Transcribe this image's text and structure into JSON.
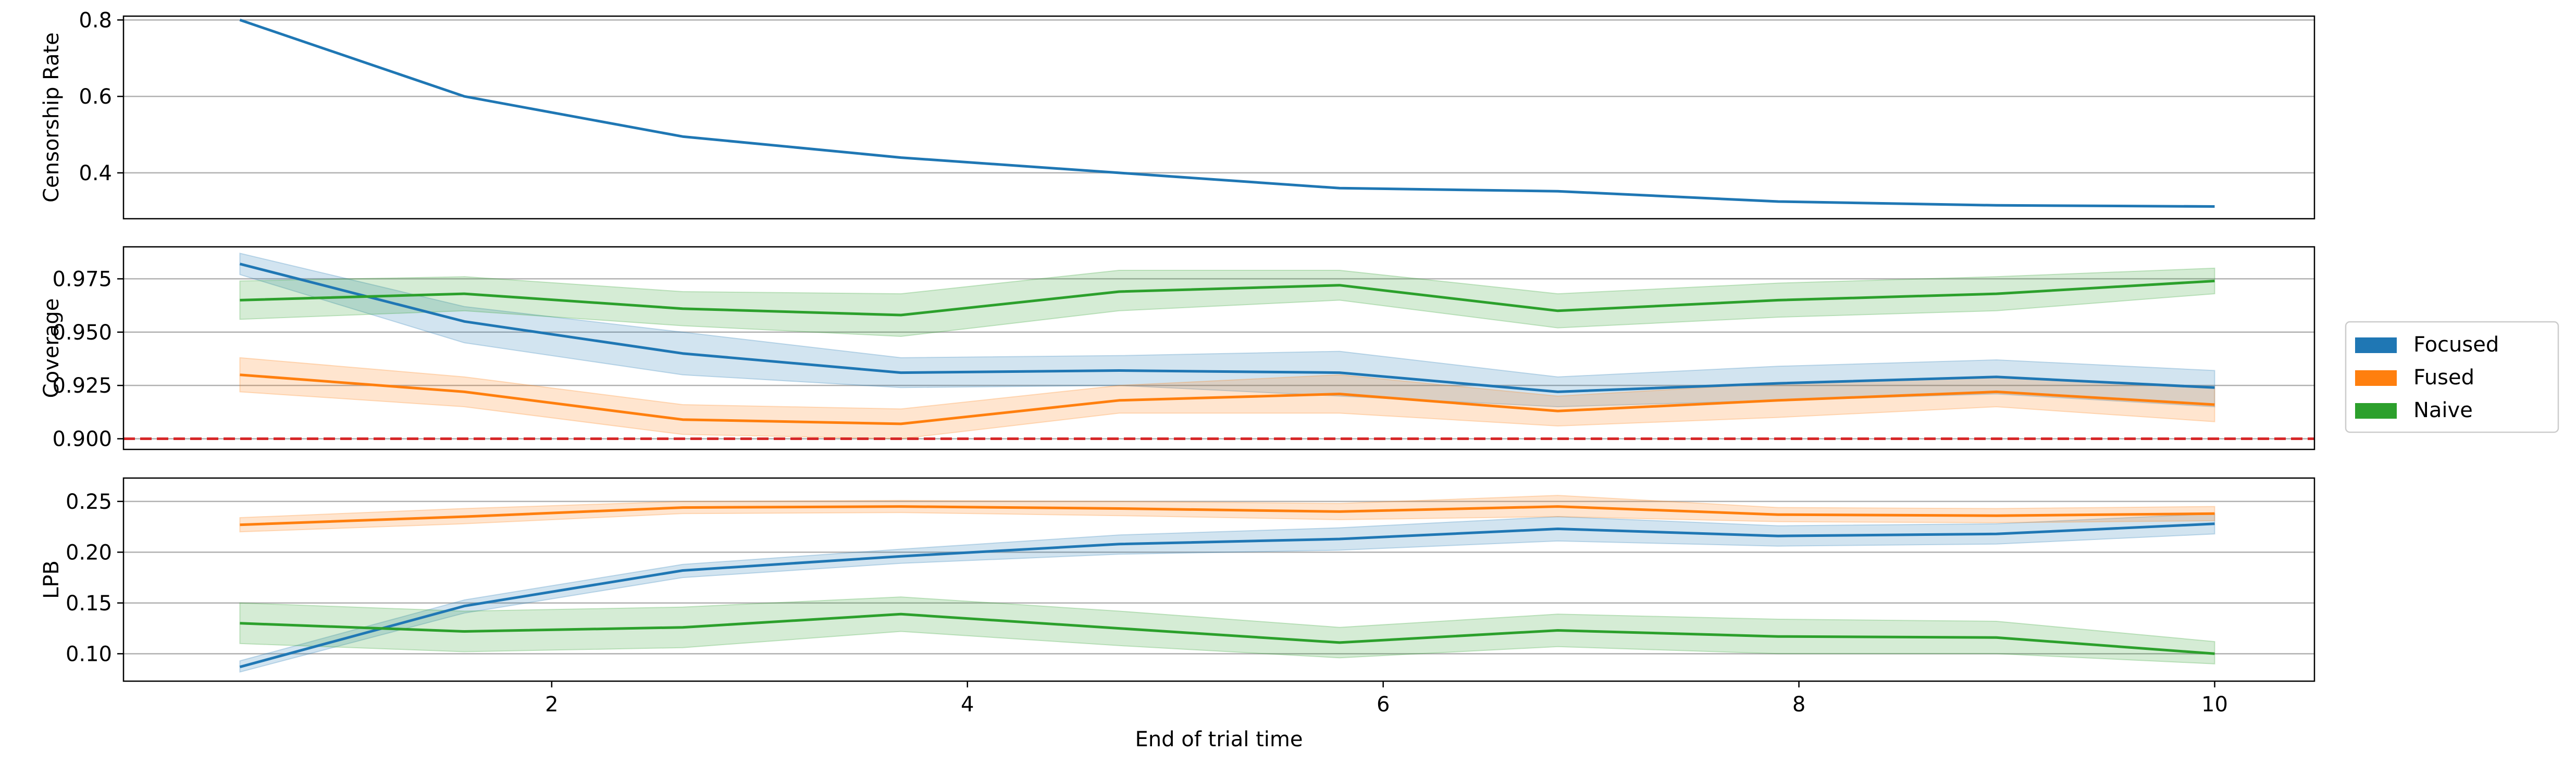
{
  "chart_data": {
    "type": "line",
    "x": [
      0.5,
      1.58,
      2.63,
      3.68,
      4.73,
      5.79,
      6.84,
      7.9,
      8.95,
      10.0
    ],
    "xlabel": "End of trial time",
    "xticks": [
      2,
      4,
      6,
      8,
      10
    ],
    "legend": {
      "placement": "right",
      "entries": [
        {
          "name": "Focused",
          "color": "#1f77b4"
        },
        {
          "name": "Fused",
          "color": "#ff7f0e"
        },
        {
          "name": "Naive",
          "color": "#2ca02c"
        }
      ]
    },
    "panels": [
      {
        "id": "censorship",
        "ylabel": "Censorship Rate",
        "ylim": [
          0.28,
          0.81
        ],
        "yticks": [
          0.4,
          0.6,
          0.8
        ],
        "ytick_labels": [
          "0.4",
          "0.6",
          "0.8"
        ],
        "grid": "horizontal",
        "series": [
          {
            "color": "#1f77b4",
            "values": [
              0.8,
              0.6,
              0.495,
              0.44,
              0.4,
              0.36,
              0.352,
              0.325,
              0.315,
              0.312
            ]
          }
        ]
      },
      {
        "id": "coverage",
        "ylabel": "Coverage",
        "ylim": [
          0.895,
          0.99
        ],
        "yticks": [
          0.9,
          0.925,
          0.95,
          0.975
        ],
        "ytick_labels": [
          "0.900",
          "0.925",
          "0.950",
          "0.975"
        ],
        "grid": "horizontal",
        "reference_line": {
          "y": 0.9,
          "color": "#d62728",
          "style": "dashed"
        },
        "series": [
          {
            "name": "Focused",
            "color": "#1f77b4",
            "values": [
              0.982,
              0.955,
              0.94,
              0.931,
              0.932,
              0.931,
              0.922,
              0.926,
              0.929,
              0.924
            ],
            "lower": [
              0.977,
              0.945,
              0.93,
              0.924,
              0.925,
              0.92,
              0.915,
              0.918,
              0.921,
              0.915
            ],
            "upper": [
              0.987,
              0.962,
              0.95,
              0.938,
              0.939,
              0.941,
              0.929,
              0.934,
              0.937,
              0.932
            ]
          },
          {
            "name": "Fused",
            "color": "#ff7f0e",
            "values": [
              0.93,
              0.922,
              0.909,
              0.907,
              0.918,
              0.921,
              0.913,
              0.918,
              0.922,
              0.916
            ],
            "lower": [
              0.922,
              0.915,
              0.902,
              0.9,
              0.912,
              0.912,
              0.906,
              0.91,
              0.915,
              0.908
            ],
            "upper": [
              0.938,
              0.929,
              0.916,
              0.914,
              0.925,
              0.93,
              0.92,
              0.926,
              0.929,
              0.924
            ]
          },
          {
            "name": "Naive",
            "color": "#2ca02c",
            "values": [
              0.965,
              0.968,
              0.961,
              0.958,
              0.969,
              0.972,
              0.96,
              0.965,
              0.968,
              0.974
            ],
            "lower": [
              0.956,
              0.96,
              0.953,
              0.948,
              0.96,
              0.965,
              0.952,
              0.957,
              0.96,
              0.968
            ],
            "upper": [
              0.974,
              0.976,
              0.969,
              0.968,
              0.979,
              0.979,
              0.968,
              0.973,
              0.976,
              0.98
            ]
          }
        ]
      },
      {
        "id": "lpb",
        "ylabel": "LPB",
        "ylim": [
          0.073,
          0.273
        ],
        "yticks": [
          0.1,
          0.15,
          0.2,
          0.25
        ],
        "ytick_labels": [
          "0.10",
          "0.15",
          "0.20",
          "0.25"
        ],
        "grid": "horizontal",
        "series": [
          {
            "name": "Focused",
            "color": "#1f77b4",
            "values": [
              0.087,
              0.147,
              0.182,
              0.196,
              0.208,
              0.213,
              0.223,
              0.216,
              0.218,
              0.228
            ],
            "lower": [
              0.082,
              0.14,
              0.175,
              0.189,
              0.198,
              0.202,
              0.211,
              0.206,
              0.208,
              0.218
            ],
            "upper": [
              0.093,
              0.153,
              0.188,
              0.203,
              0.217,
              0.224,
              0.235,
              0.226,
              0.228,
              0.238
            ]
          },
          {
            "name": "Fused",
            "color": "#ff7f0e",
            "values": [
              0.227,
              0.235,
              0.244,
              0.245,
              0.243,
              0.24,
              0.245,
              0.237,
              0.236,
              0.238
            ],
            "lower": [
              0.22,
              0.228,
              0.238,
              0.239,
              0.236,
              0.232,
              0.235,
              0.23,
              0.229,
              0.231
            ],
            "upper": [
              0.234,
              0.243,
              0.25,
              0.251,
              0.25,
              0.248,
              0.256,
              0.244,
              0.243,
              0.245
            ]
          },
          {
            "name": "Naive",
            "color": "#2ca02c",
            "values": [
              0.13,
              0.122,
              0.126,
              0.139,
              0.125,
              0.111,
              0.123,
              0.117,
              0.116,
              0.1
            ],
            "lower": [
              0.11,
              0.102,
              0.106,
              0.122,
              0.108,
              0.096,
              0.107,
              0.1,
              0.1,
              0.09
            ],
            "upper": [
              0.15,
              0.142,
              0.146,
              0.156,
              0.142,
              0.126,
              0.139,
              0.134,
              0.132,
              0.112
            ]
          }
        ]
      }
    ]
  }
}
